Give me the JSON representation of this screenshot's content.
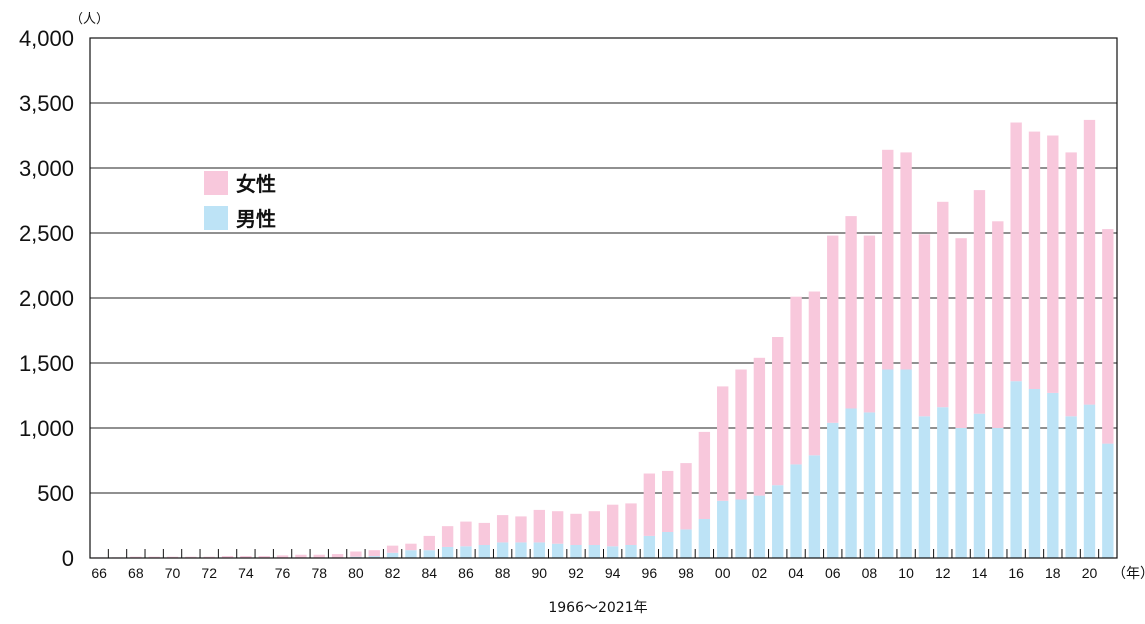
{
  "chart_data": {
    "type": "bar",
    "stacked": true,
    "y_unit": "（人）",
    "x_unit": "（年）",
    "caption": "1966〜2021年",
    "ylim": [
      0,
      4000
    ],
    "yticks": [
      "0",
      "500",
      "1,000",
      "1,500",
      "2,000",
      "2,500",
      "3,000",
      "3,500",
      "4,000"
    ],
    "categories": [
      "66",
      "67",
      "68",
      "69",
      "70",
      "71",
      "72",
      "73",
      "74",
      "75",
      "76",
      "77",
      "78",
      "79",
      "80",
      "81",
      "82",
      "83",
      "84",
      "85",
      "86",
      "87",
      "88",
      "89",
      "90",
      "91",
      "92",
      "93",
      "94",
      "95",
      "96",
      "97",
      "98",
      "99",
      "00",
      "01",
      "02",
      "03",
      "04",
      "05",
      "06",
      "07",
      "08",
      "09",
      "10",
      "11",
      "12",
      "13",
      "14",
      "15",
      "16",
      "17",
      "18",
      "19",
      "20",
      "21"
    ],
    "xtick_labels": [
      "66",
      "68",
      "70",
      "72",
      "74",
      "76",
      "78",
      "80",
      "82",
      "84",
      "86",
      "88",
      "90",
      "92",
      "94",
      "96",
      "98",
      "00",
      "02",
      "04",
      "06",
      "08",
      "10",
      "12",
      "14",
      "16",
      "18",
      "20"
    ],
    "legend_position": "upper-left",
    "series": [
      {
        "name": "男性",
        "color": "#bde3f6",
        "values": [
          0,
          0,
          0,
          0,
          0,
          0,
          0,
          0,
          0,
          0,
          0,
          0,
          0,
          0,
          10,
          15,
          40,
          60,
          60,
          85,
          90,
          100,
          120,
          120,
          120,
          110,
          100,
          100,
          90,
          100,
          170,
          200,
          220,
          300,
          440,
          450,
          480,
          560,
          720,
          790,
          1040,
          1150,
          1120,
          1450,
          1450,
          1090,
          1160,
          1000,
          1110,
          1000,
          1360,
          1300,
          1270,
          1090,
          1180,
          880
        ]
      },
      {
        "name": "女性",
        "color": "#f8c8dc",
        "values": [
          5,
          5,
          10,
          10,
          10,
          10,
          10,
          15,
          15,
          15,
          20,
          25,
          25,
          30,
          40,
          45,
          55,
          50,
          110,
          160,
          190,
          170,
          210,
          200,
          250,
          250,
          240,
          260,
          320,
          320,
          480,
          470,
          510,
          670,
          880,
          1000,
          1060,
          1140,
          1290,
          1260,
          1440,
          1480,
          1360,
          1690,
          1670,
          1400,
          1580,
          1460,
          1720,
          1590,
          1990,
          1980,
          1980,
          2030,
          2190,
          1650
        ]
      }
    ]
  }
}
